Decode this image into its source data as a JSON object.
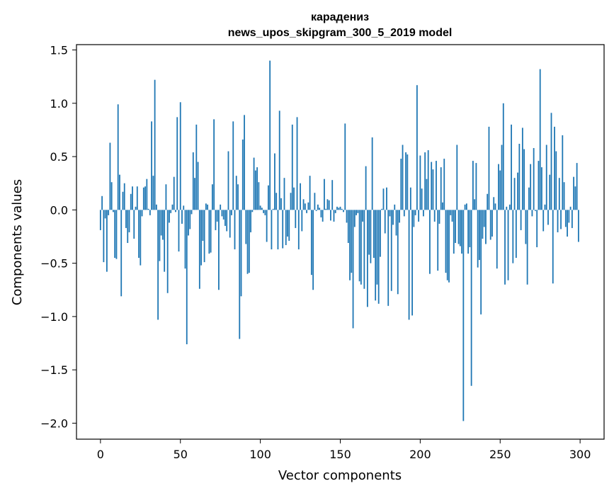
{
  "chart_data": {
    "type": "bar",
    "title_line1": "карадениз",
    "title_line2": "news_upos_skipgram_300_5_2019 model",
    "xlabel": "Vector components",
    "ylabel": "Components values",
    "xlim": [
      -15,
      315
    ],
    "ylim": [
      -2.15,
      1.55
    ],
    "x_ticks": [
      0,
      50,
      100,
      150,
      200,
      250,
      300
    ],
    "y_ticks": [
      -2.0,
      -1.5,
      -1.0,
      -0.5,
      0.0,
      0.5,
      1.0,
      1.5
    ],
    "bar_color": "#1f77b4",
    "grid": false,
    "values": [
      -0.19,
      0.13,
      -0.49,
      -0.08,
      -0.58,
      -0.05,
      0.63,
      0.26,
      -0.02,
      -0.45,
      -0.46,
      0.99,
      0.33,
      -0.81,
      0.17,
      0.25,
      -0.17,
      -0.31,
      -0.21,
      0.15,
      0.22,
      -0.27,
      0.03,
      0.22,
      -0.45,
      -0.52,
      -0.06,
      0.21,
      0.22,
      0.29,
      0.01,
      -0.05,
      0.83,
      0.32,
      1.22,
      0.05,
      -1.03,
      -0.48,
      -0.24,
      -0.28,
      -0.58,
      0.24,
      -0.78,
      -0.12,
      -0.03,
      0.05,
      0.31,
      -0.02,
      0.87,
      -0.39,
      1.01,
      -0.13,
      0.04,
      -0.55,
      -1.26,
      -0.24,
      -0.18,
      -0.04,
      0.54,
      0.3,
      0.8,
      0.45,
      -0.74,
      -0.52,
      -0.29,
      -0.49,
      0.06,
      0.05,
      -0.41,
      -0.4,
      0.24,
      0.85,
      -0.19,
      -0.11,
      -0.75,
      0.05,
      -0.06,
      -0.09,
      -0.15,
      -0.2,
      0.55,
      -0.26,
      -0.05,
      0.83,
      -0.37,
      0.32,
      0.24,
      -1.21,
      -0.81,
      0.66,
      0.89,
      -0.32,
      -0.6,
      -0.59,
      -0.21,
      -0.02,
      0.49,
      0.37,
      0.4,
      0.26,
      0.04,
      0.02,
      -0.03,
      -0.05,
      -0.3,
      0.23,
      1.4,
      -0.37,
      0.01,
      0.53,
      0.16,
      -0.37,
      0.93,
      0.11,
      -0.36,
      0.3,
      -0.33,
      -0.25,
      -0.29,
      0.16,
      0.8,
      0.21,
      -0.17,
      0.87,
      -0.37,
      0.25,
      -0.2,
      0.1,
      0.06,
      -0.03,
      0.07,
      0.32,
      -0.61,
      -0.75,
      0.16,
      -0.01,
      0.05,
      0.02,
      -0.07,
      -0.11,
      0.29,
      0.01,
      0.1,
      0.09,
      -0.1,
      0.28,
      -0.11,
      -0.03,
      0.03,
      0.02,
      0.03,
      0.01,
      -0.02,
      0.81,
      -0.12,
      -0.31,
      -0.66,
      -0.59,
      -1.11,
      -0.16,
      -0.05,
      -0.03,
      -0.67,
      -0.7,
      -0.11,
      -0.74,
      0.41,
      -0.91,
      -0.42,
      -0.5,
      0.68,
      -0.45,
      -0.85,
      -0.7,
      -0.88,
      -0.44,
      0.01,
      0.2,
      -0.22,
      0.21,
      -0.9,
      -0.06,
      -0.76,
      -0.14,
      0.05,
      -0.24,
      -0.79,
      -0.12,
      0.48,
      0.61,
      -0.06,
      0.54,
      0.52,
      -1.03,
      0.21,
      -0.99,
      -0.16,
      -0.05,
      1.17,
      -0.11,
      0.51,
      0.2,
      -0.06,
      0.54,
      0.29,
      0.56,
      -0.6,
      0.45,
      0.38,
      -0.11,
      0.46,
      -0.57,
      -0.13,
      0.4,
      0.07,
      0.48,
      -0.59,
      -0.66,
      -0.68,
      -0.05,
      -0.11,
      -0.41,
      -0.31,
      0.61,
      -0.32,
      -0.34,
      -0.41,
      -1.98,
      0.05,
      0.06,
      -0.41,
      -0.35,
      -1.65,
      0.46,
      0.1,
      0.44,
      -0.54,
      -0.47,
      -0.98,
      -0.27,
      -0.16,
      -0.32,
      0.15,
      0.78,
      -0.28,
      -0.25,
      0.12,
      0.06,
      -0.55,
      0.43,
      0.37,
      0.61,
      1.0,
      -0.7,
      0.03,
      -0.66,
      0.05,
      0.8,
      -0.5,
      0.3,
      -0.45,
      0.35,
      0.62,
      -0.19,
      0.77,
      0.57,
      -0.32,
      -0.7,
      0.21,
      0.43,
      -0.06,
      0.58,
      -0.01,
      -0.35,
      0.46,
      1.32,
      0.4,
      -0.2,
      0.05,
      0.61,
      -0.14,
      0.33,
      0.91,
      -0.69,
      0.78,
      0.55,
      -0.21,
      0.3,
      -0.18,
      0.7,
      0.26,
      -0.16,
      -0.25,
      -0.12,
      0.03,
      -0.17,
      0.31,
      0.22,
      0.44,
      -0.3
    ]
  }
}
